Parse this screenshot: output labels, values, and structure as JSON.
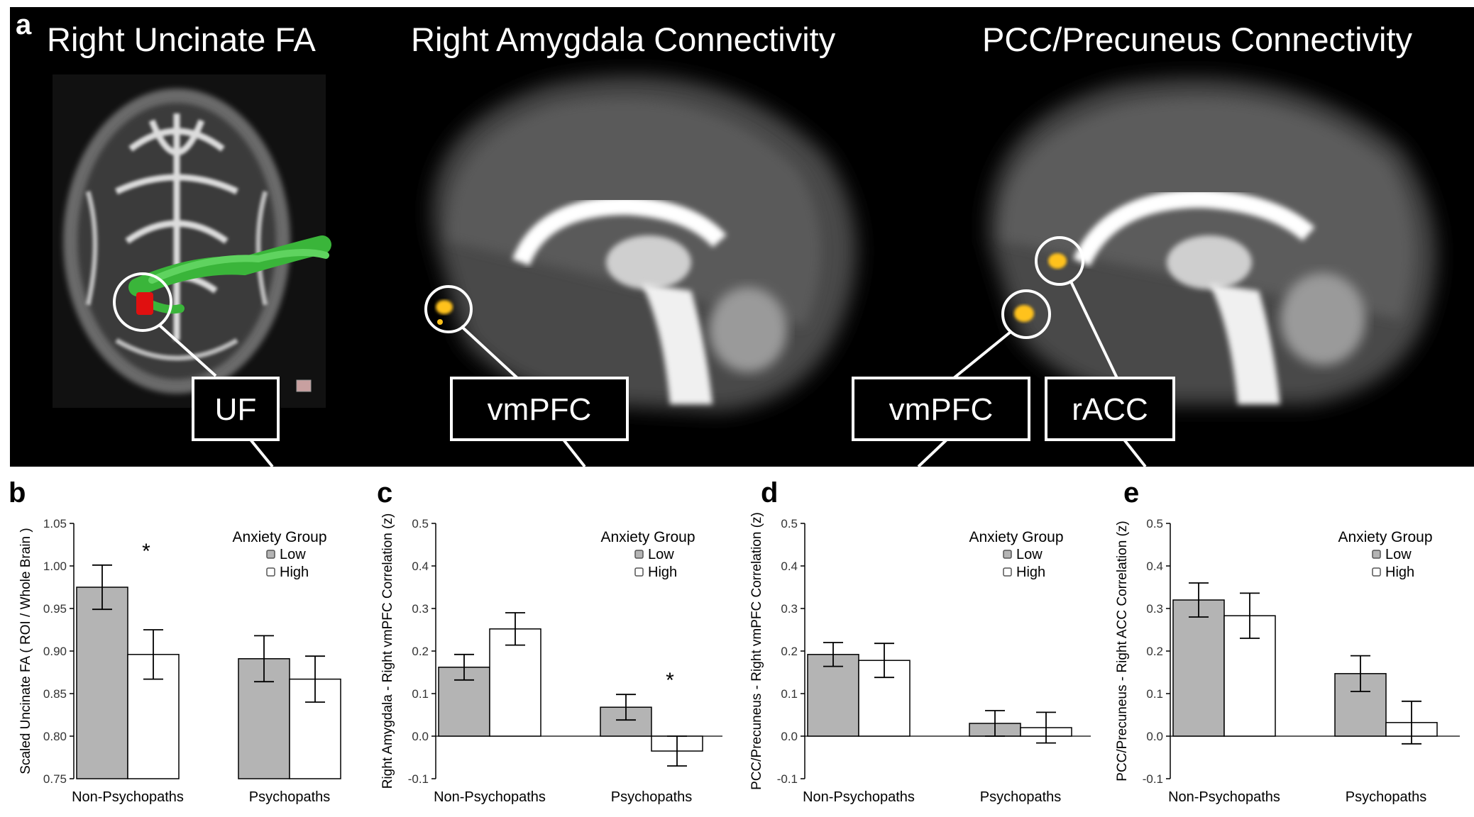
{
  "panel_a": {
    "letter": "a",
    "titles": [
      "Right Uncinate FA",
      "Right Amygdala Connectivity",
      "PCC/Precuneus Connectivity"
    ],
    "labels": [
      "UF",
      "vmPFC",
      "vmPFC",
      "rACC"
    ]
  },
  "legend": {
    "title": "Anxiety Group",
    "low": "Low",
    "high": "High"
  },
  "chart_data": [
    {
      "type": "bar",
      "panel": "b",
      "ylabel": "Scaled Uncinate FA ( ROI / Whole Brain )",
      "categories": [
        "Non-Psychopaths",
        "Psychopaths"
      ],
      "ylim": [
        0.75,
        1.05
      ],
      "yticks": [
        "0.75",
        "0.80",
        "0.85",
        "0.90",
        "0.95",
        "1.00",
        "1.05"
      ],
      "series": [
        {
          "name": "Low",
          "values": [
            0.975,
            0.891
          ],
          "err": [
            0.026,
            0.027
          ]
        },
        {
          "name": "High",
          "values": [
            0.896,
            0.867
          ],
          "err": [
            0.029,
            0.027
          ]
        }
      ],
      "significance": [
        {
          "category": 0,
          "mark": "*"
        }
      ],
      "legend": "top-right"
    },
    {
      "type": "bar",
      "panel": "c",
      "ylabel": "Right Amygdala - Right vmPFC Correlation (z)",
      "categories": [
        "Non-Psychopaths",
        "Psychopaths"
      ],
      "ylim": [
        -0.1,
        0.5
      ],
      "yticks": [
        "-0.1",
        "0.0",
        "0.1",
        "0.2",
        "0.3",
        "0.4",
        "0.5"
      ],
      "series": [
        {
          "name": "Low",
          "values": [
            0.162,
            0.068
          ],
          "err": [
            0.03,
            0.03
          ]
        },
        {
          "name": "High",
          "values": [
            0.252,
            -0.035
          ],
          "err": [
            0.038,
            0.035
          ]
        }
      ],
      "significance": [
        {
          "category": 1,
          "mark": "*"
        }
      ],
      "legend": "top-right"
    },
    {
      "type": "bar",
      "panel": "d",
      "ylabel": "PCC/Precuneus - Right vmPFC Correlation (z)",
      "categories": [
        "Non-Psychopaths",
        "Psychopaths"
      ],
      "ylim": [
        -0.1,
        0.5
      ],
      "yticks": [
        "-0.1",
        "0.0",
        "0.1",
        "0.2",
        "0.3",
        "0.4",
        "0.5"
      ],
      "series": [
        {
          "name": "Low",
          "values": [
            0.192,
            0.03
          ],
          "err": [
            0.028,
            0.03
          ]
        },
        {
          "name": "High",
          "values": [
            0.178,
            0.02
          ],
          "err": [
            0.04,
            0.036
          ]
        }
      ],
      "significance": [],
      "legend": "top-right"
    },
    {
      "type": "bar",
      "panel": "e",
      "ylabel": "PCC/Precuneus - Right ACC Correlation (z)",
      "categories": [
        "Non-Psychopaths",
        "Psychopaths"
      ],
      "ylim": [
        -0.1,
        0.5
      ],
      "yticks": [
        "-0.1",
        "0.0",
        "0.1",
        "0.2",
        "0.3",
        "0.4",
        "0.5"
      ],
      "series": [
        {
          "name": "Low",
          "values": [
            0.32,
            0.147
          ],
          "err": [
            0.04,
            0.042
          ]
        },
        {
          "name": "High",
          "values": [
            0.283,
            0.032
          ],
          "err": [
            0.053,
            0.05
          ]
        }
      ],
      "significance": [],
      "legend": "top-right"
    }
  ],
  "colors": {
    "low_bar": "#b4b4b4",
    "high_bar": "#ffffff",
    "axis": "#000000",
    "tract": "#3ab53a",
    "roi": "#e01010",
    "blob": "#ffc21a"
  }
}
